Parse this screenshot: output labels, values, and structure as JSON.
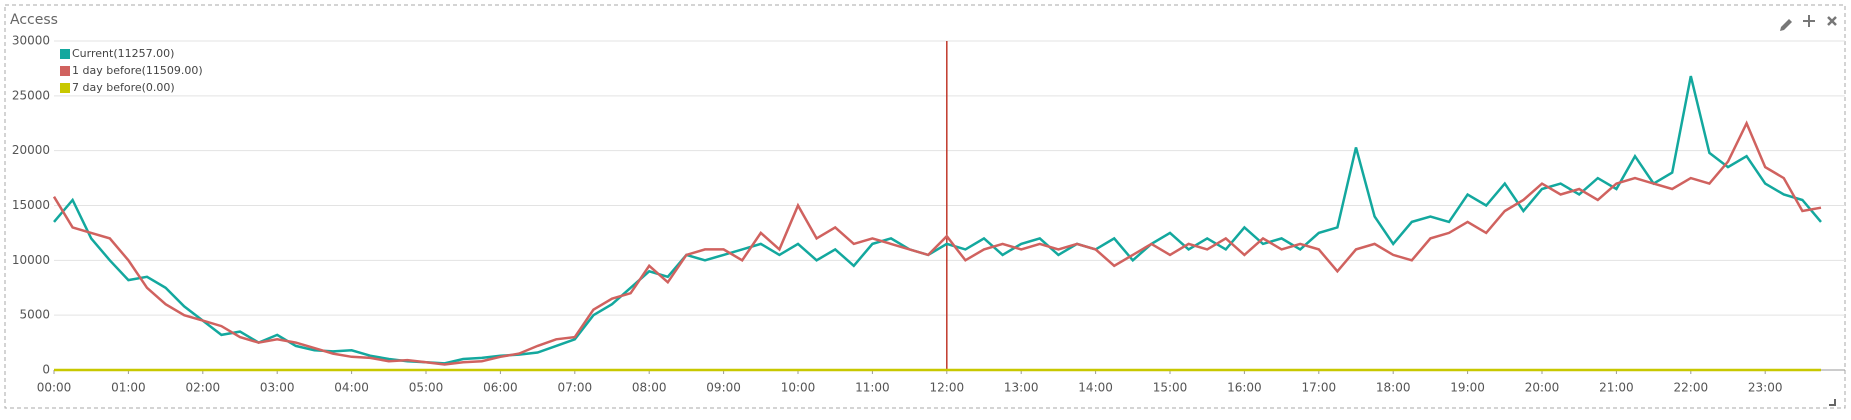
{
  "chart_data": {
    "type": "line",
    "title": "Access",
    "categories": [
      "00:00",
      null,
      null,
      null,
      "01:00",
      null,
      null,
      null,
      "02:00",
      null,
      null,
      null,
      "03:00",
      null,
      null,
      null,
      "04:00",
      null,
      null,
      null,
      "05:00",
      null,
      null,
      null,
      "06:00",
      null,
      null,
      null,
      "07:00",
      null,
      null,
      null,
      "08:00",
      null,
      null,
      null,
      "09:00",
      null,
      null,
      null,
      "10:00",
      null,
      null,
      null,
      "11:00",
      null,
      null,
      null,
      "12:00",
      null,
      null,
      null,
      "13:00",
      null,
      null,
      null,
      "14:00",
      null,
      null,
      null,
      "15:00",
      null,
      null,
      null,
      "16:00",
      null,
      null,
      null,
      "17:00",
      null,
      null,
      null,
      "18:00",
      null,
      null,
      null,
      "19:00",
      null,
      null,
      null,
      "20:00",
      null,
      null,
      null,
      "21:00",
      null,
      null,
      null,
      "22:00",
      null,
      null,
      null,
      "23:00",
      null,
      null,
      null
    ],
    "series": [
      {
        "name": "Current(11257.00)",
        "color": "#13a89e",
        "values": [
          13500,
          15500,
          12000,
          10000,
          8200,
          8500,
          7500,
          5800,
          4500,
          3200,
          3500,
          2500,
          3200,
          2200,
          1800,
          1700,
          1800,
          1300,
          1000,
          800,
          700,
          600,
          1000,
          1100,
          1300,
          1400,
          1600,
          2200,
          2800,
          5000,
          6000,
          7500,
          9000,
          8500,
          10500,
          10000,
          10500,
          11000,
          11500,
          10500,
          11500,
          10000,
          11000,
          9500,
          11500,
          12000,
          11000,
          10500,
          11500,
          11000,
          12000,
          10500,
          11500,
          12000,
          10500,
          11500,
          11000,
          12000,
          10000,
          11500,
          12500,
          11000,
          12000,
          11000,
          13000,
          11500,
          12000,
          11000,
          12500,
          13000,
          20300,
          14000,
          11500,
          13500,
          14000,
          13500,
          16000,
          15000,
          17000,
          14500,
          16500,
          17000,
          16000,
          17500,
          16500,
          19500,
          17000,
          18000,
          26800,
          19800,
          18500,
          19500,
          17000,
          16000,
          15500,
          13500
        ]
      },
      {
        "name": "1 day before(11509.00)",
        "color": "#d0625f",
        "values": [
          15800,
          13000,
          12500,
          12000,
          10000,
          7500,
          6000,
          5000,
          4500,
          4000,
          3000,
          2500,
          2800,
          2500,
          2000,
          1500,
          1200,
          1100,
          800,
          900,
          700,
          500,
          700,
          800,
          1200,
          1500,
          2200,
          2800,
          3000,
          5500,
          6500,
          7000,
          9500,
          8000,
          10500,
          11000,
          11000,
          10000,
          12500,
          11000,
          15000,
          12000,
          13000,
          11500,
          12000,
          11500,
          11000,
          10500,
          12200,
          10000,
          11000,
          11500,
          11000,
          11500,
          11000,
          11500,
          11000,
          9500,
          10500,
          11500,
          10500,
          11500,
          11000,
          12000,
          10500,
          12000,
          11000,
          11500,
          11000,
          9000,
          11000,
          11500,
          10500,
          10000,
          12000,
          12500,
          13500,
          12500,
          14500,
          15500,
          17000,
          16000,
          16500,
          15500,
          17000,
          17500,
          17000,
          16500,
          17500,
          17000,
          19000,
          22500,
          18500,
          17500,
          14500,
          14800
        ]
      },
      {
        "name": "7 day before(0.00)",
        "color": "#c8c800",
        "values": [
          0,
          0,
          0,
          0,
          0,
          0,
          0,
          0,
          0,
          0,
          0,
          0,
          0,
          0,
          0,
          0,
          0,
          0,
          0,
          0,
          0,
          0,
          0,
          0,
          0,
          0,
          0,
          0,
          0,
          0,
          0,
          0,
          0,
          0,
          0,
          0,
          0,
          0,
          0,
          0,
          0,
          0,
          0,
          0,
          0,
          0,
          0,
          0,
          0,
          0,
          0,
          0,
          0,
          0,
          0,
          0,
          0,
          0,
          0,
          0,
          0,
          0,
          0,
          0,
          0,
          0,
          0,
          0,
          0,
          0,
          0,
          0,
          0,
          0,
          0,
          0,
          0,
          0,
          0,
          0,
          0,
          0,
          0,
          0,
          0,
          0,
          0,
          0,
          0,
          0,
          0,
          0,
          0,
          0,
          0,
          0
        ]
      }
    ],
    "ylim": [
      0,
      30000
    ],
    "yticks": [
      0,
      5000,
      10000,
      15000,
      20000,
      25000,
      30000
    ],
    "grid": true,
    "marker_category": "12:00",
    "marker_color": "#c0392b"
  }
}
